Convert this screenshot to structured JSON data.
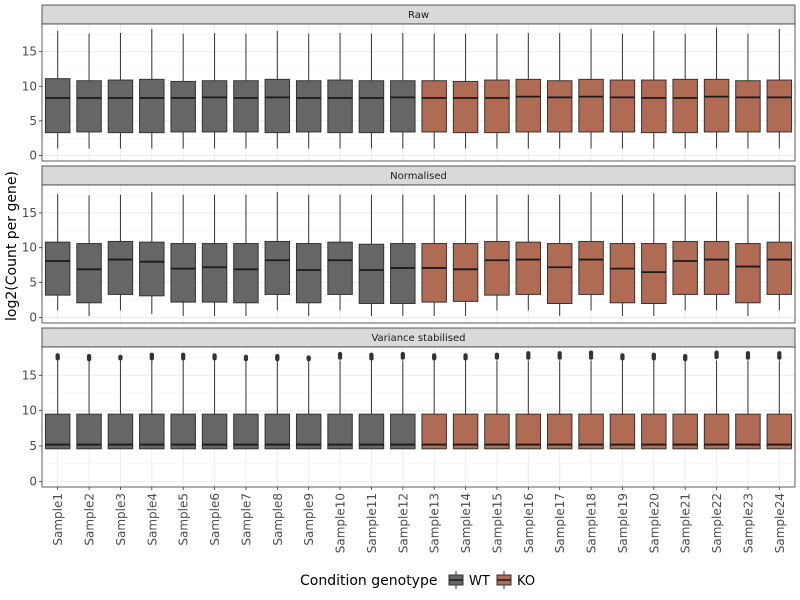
{
  "chart_data": {
    "type": "boxplot",
    "ylabel": "log2(Count per gene)",
    "xlabel": "",
    "ylim": [
      -0.8,
      19
    ],
    "yticks": [
      0,
      5,
      10,
      15
    ],
    "grid": true,
    "legend": {
      "title": "Condition genotype",
      "position": "bottom",
      "entries": [
        {
          "name": "WT",
          "color": "#666666"
        },
        {
          "name": "KO",
          "color": "#B06B55"
        }
      ]
    },
    "samples": [
      "Sample1",
      "Sample2",
      "Sample3",
      "Sample4",
      "Sample5",
      "Sample6",
      "Sample7",
      "Sample8",
      "Sample9",
      "Sample10",
      "Sample11",
      "Sample12",
      "Sample13",
      "Sample14",
      "Sample15",
      "Sample16",
      "Sample17",
      "Sample18",
      "Sample19",
      "Sample20",
      "Sample21",
      "Sample22",
      "Sample23",
      "Sample24"
    ],
    "groups": [
      "WT",
      "WT",
      "WT",
      "WT",
      "WT",
      "WT",
      "WT",
      "WT",
      "WT",
      "WT",
      "WT",
      "WT",
      "KO",
      "KO",
      "KO",
      "KO",
      "KO",
      "KO",
      "KO",
      "KO",
      "KO",
      "KO",
      "KO",
      "KO"
    ],
    "panels": [
      {
        "title": "Raw",
        "min": [
          1,
          1,
          1,
          1,
          1,
          1,
          1,
          1,
          1,
          1,
          1,
          1,
          1,
          1,
          1,
          1,
          1,
          1,
          1,
          1,
          1,
          1,
          1,
          1
        ],
        "q1": [
          3.3,
          3.4,
          3.3,
          3.3,
          3.4,
          3.4,
          3.4,
          3.3,
          3.4,
          3.3,
          3.3,
          3.4,
          3.4,
          3.3,
          3.3,
          3.4,
          3.4,
          3.4,
          3.4,
          3.3,
          3.3,
          3.4,
          3.4,
          3.4
        ],
        "median": [
          8.3,
          8.3,
          8.3,
          8.3,
          8.3,
          8.4,
          8.3,
          8.4,
          8.3,
          8.3,
          8.3,
          8.4,
          8.3,
          8.3,
          8.3,
          8.5,
          8.4,
          8.5,
          8.4,
          8.3,
          8.3,
          8.5,
          8.4,
          8.4
        ],
        "q3": [
          11.1,
          10.8,
          10.9,
          11.0,
          10.7,
          10.8,
          10.8,
          11.0,
          10.8,
          10.9,
          10.8,
          10.8,
          10.8,
          10.7,
          10.9,
          11.0,
          10.8,
          11.0,
          10.9,
          10.9,
          11.0,
          11.0,
          10.8,
          10.9
        ],
        "max": [
          18.0,
          17.6,
          17.7,
          18.3,
          17.6,
          17.7,
          17.6,
          18.0,
          17.6,
          17.7,
          17.6,
          17.7,
          17.6,
          17.6,
          17.6,
          17.7,
          17.7,
          18.3,
          17.6,
          18.0,
          17.6,
          18.5,
          17.6,
          18.3
        ],
        "outliers": [
          [],
          [],
          [],
          [],
          [],
          [],
          [],
          [],
          [],
          [],
          [],
          [],
          [],
          [],
          [],
          [],
          [],
          [],
          [],
          [],
          [],
          [],
          [],
          []
        ]
      },
      {
        "title": "Normalised",
        "min": [
          1,
          0.2,
          1,
          0.5,
          0.2,
          0.2,
          0.2,
          1,
          0.2,
          1,
          0.2,
          0.2,
          0.2,
          0.2,
          1,
          1,
          0.2,
          1,
          0.2,
          0.2,
          1,
          1,
          0.2,
          1
        ],
        "q1": [
          3.2,
          2.1,
          3.3,
          3.1,
          2.2,
          2.2,
          2.1,
          3.3,
          2.1,
          3.3,
          2.0,
          2.0,
          2.2,
          2.3,
          3.2,
          3.3,
          2.0,
          3.3,
          2.1,
          2.0,
          3.3,
          3.3,
          2.1,
          3.3
        ],
        "median": [
          8.1,
          6.9,
          8.3,
          8.0,
          7.0,
          7.2,
          6.9,
          8.2,
          6.8,
          8.2,
          6.8,
          7.1,
          7.1,
          6.9,
          8.2,
          8.3,
          7.2,
          8.3,
          7.0,
          6.5,
          8.1,
          8.3,
          7.3,
          8.3
        ],
        "q3": [
          10.8,
          10.6,
          10.9,
          10.8,
          10.6,
          10.6,
          10.6,
          10.9,
          10.6,
          10.8,
          10.5,
          10.6,
          10.6,
          10.6,
          10.9,
          10.8,
          10.6,
          10.9,
          10.6,
          10.6,
          10.9,
          10.9,
          10.6,
          10.8
        ],
        "max": [
          17.7,
          17.5,
          17.6,
          18.0,
          17.6,
          17.6,
          17.6,
          18.0,
          17.6,
          17.6,
          17.6,
          17.6,
          17.6,
          17.6,
          17.6,
          17.6,
          17.6,
          18.0,
          17.6,
          17.8,
          17.6,
          18.0,
          17.6,
          18.0
        ],
        "outliers": [
          [],
          [],
          [],
          [],
          [],
          [],
          [],
          [],
          [],
          [],
          [],
          [],
          [],
          [],
          [],
          [],
          [],
          [],
          [],
          [],
          [],
          [],
          [],
          []
        ]
      },
      {
        "title": "Variance stabilised",
        "min": [
          4.6,
          4.6,
          4.6,
          4.6,
          4.6,
          4.6,
          4.6,
          4.6,
          4.6,
          4.6,
          4.6,
          4.6,
          4.6,
          4.6,
          4.6,
          4.6,
          4.6,
          4.6,
          4.6,
          4.6,
          4.6,
          4.6,
          4.6,
          4.6
        ],
        "q1": [
          4.6,
          4.6,
          4.6,
          4.6,
          4.6,
          4.6,
          4.6,
          4.6,
          4.6,
          4.6,
          4.6,
          4.6,
          4.6,
          4.6,
          4.6,
          4.6,
          4.6,
          4.6,
          4.6,
          4.6,
          4.6,
          4.6,
          4.6,
          4.6
        ],
        "median": [
          5.2,
          5.2,
          5.2,
          5.2,
          5.2,
          5.2,
          5.2,
          5.2,
          5.2,
          5.2,
          5.2,
          5.2,
          5.2,
          5.2,
          5.2,
          5.2,
          5.2,
          5.2,
          5.2,
          5.2,
          5.2,
          5.2,
          5.2,
          5.2
        ],
        "q3": [
          9.5,
          9.5,
          9.5,
          9.5,
          9.5,
          9.5,
          9.5,
          9.5,
          9.5,
          9.5,
          9.5,
          9.5,
          9.5,
          9.5,
          9.5,
          9.5,
          9.5,
          9.5,
          9.5,
          9.5,
          9.5,
          9.5,
          9.5,
          9.5
        ],
        "max": [
          17.1,
          17.1,
          17.1,
          17.1,
          17.1,
          17.1,
          17.1,
          17.1,
          17.1,
          17.1,
          17.1,
          17.1,
          17.1,
          17.1,
          17.1,
          17.1,
          17.1,
          17.1,
          17.1,
          17.1,
          17.1,
          17.1,
          17.1,
          17.1
        ],
        "outliers": [
          [
            17.4,
            17.6,
            17.8
          ],
          [
            17.3,
            17.5,
            17.7
          ],
          [
            17.4,
            17.6
          ],
          [
            17.4,
            17.7,
            17.9
          ],
          [
            17.4,
            17.7,
            17.9
          ],
          [
            17.4,
            17.6,
            17.8
          ],
          [
            17.3,
            17.6
          ],
          [
            17.3,
            17.5,
            17.7
          ],
          [
            17.3,
            17.5
          ],
          [
            17.5,
            17.8,
            18.0
          ],
          [
            17.4,
            17.7,
            17.9
          ],
          [
            17.5,
            17.8,
            18.0
          ],
          [
            17.4,
            17.6,
            17.8
          ],
          [
            17.4,
            17.6,
            17.8
          ],
          [
            17.5,
            17.7,
            17.9
          ],
          [
            17.5,
            17.8,
            18.1
          ],
          [
            17.5,
            17.8,
            18.1
          ],
          [
            17.5,
            17.9,
            18.2
          ],
          [
            17.4,
            17.6,
            17.8
          ],
          [
            17.4,
            17.7,
            17.9
          ],
          [
            17.3,
            17.5,
            17.7
          ],
          [
            17.6,
            17.9,
            18.2
          ],
          [
            17.5,
            17.8,
            18.1
          ],
          [
            17.5,
            17.8,
            18.1
          ]
        ]
      }
    ]
  }
}
